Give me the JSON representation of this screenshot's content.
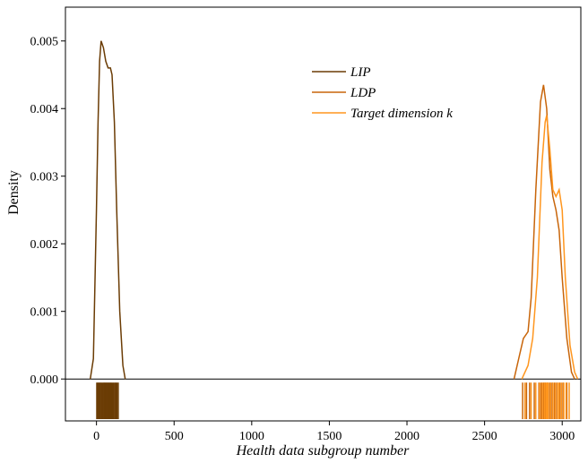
{
  "chart_data": {
    "type": "kde",
    "x_label": "Health data subgroup number",
    "y_label": "Density",
    "xlim": [
      -200,
      3120
    ],
    "ylim": [
      -0.00062,
      0.0055
    ],
    "xticks": [
      0,
      500,
      1000,
      1500,
      2000,
      2500,
      3000
    ],
    "yticks": [
      {
        "value": 0,
        "label": "0.000"
      },
      0.001,
      0.002,
      0.003,
      0.004,
      0.005
    ],
    "legend": "upper center",
    "series": [
      {
        "name": "LIP",
        "color": "#6b3c05",
        "x": [
          -40,
          -20,
          0,
          10,
          20,
          30,
          45,
          60,
          75,
          90,
          100,
          115,
          130,
          150,
          170,
          185
        ],
        "values": [
          0,
          0.0003,
          0.0025,
          0.0038,
          0.0047,
          0.005,
          0.0049,
          0.0047,
          0.0046,
          0.0046,
          0.0045,
          0.0038,
          0.0025,
          0.001,
          0.0002,
          0
        ],
        "rug": [
          2,
          8,
          14,
          20,
          26,
          33,
          40,
          47,
          52,
          58,
          64,
          70,
          77,
          83,
          90,
          96,
          103,
          110,
          118,
          125,
          132,
          140
        ]
      },
      {
        "name": "LDP",
        "color": "#c8650a",
        "x": [
          2690,
          2720,
          2750,
          2780,
          2800,
          2830,
          2860,
          2880,
          2900,
          2920,
          2940,
          2960,
          2980,
          3000,
          3030,
          3060,
          3080
        ],
        "values": [
          0,
          0.0003,
          0.0006,
          0.0007,
          0.0012,
          0.0028,
          0.0041,
          0.00435,
          0.004,
          0.0031,
          0.0027,
          0.0025,
          0.0022,
          0.0015,
          0.0006,
          0.0001,
          0
        ],
        "rug": [
          2745,
          2770,
          2790,
          2820,
          2850,
          2865,
          2880,
          2890,
          2905,
          2920,
          2935,
          2950,
          2965,
          2985,
          3005,
          3030
        ]
      },
      {
        "name": "Target dimension k",
        "color": "#ff961e",
        "x": [
          2740,
          2780,
          2810,
          2840,
          2870,
          2890,
          2900,
          2920,
          2940,
          2960,
          2980,
          3000,
          3020,
          3050,
          3080,
          3100
        ],
        "values": [
          0,
          0.0002,
          0.0006,
          0.0015,
          0.0032,
          0.0038,
          0.0039,
          0.0034,
          0.0028,
          0.0027,
          0.0028,
          0.0025,
          0.0015,
          0.0005,
          0.0001,
          0
        ],
        "rug": [
          2760,
          2800,
          2830,
          2855,
          2872,
          2885,
          2895,
          2902,
          2910,
          2925,
          2940,
          2955,
          2970,
          2980,
          2995,
          3010,
          3025,
          3045
        ]
      }
    ]
  }
}
